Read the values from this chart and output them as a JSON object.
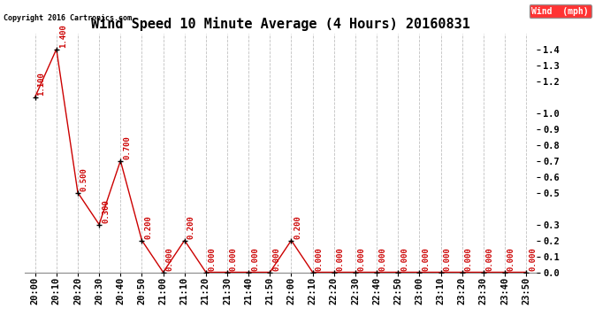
{
  "title": "Wind Speed 10 Minute Average (4 Hours) 20160831",
  "copyright_text": "Copyright 2016 Cartronics.com",
  "legend_label": "Wind  (mph)",
  "legend_bg": "#ff0000",
  "legend_text_color": "#ffffff",
  "x_labels": [
    "20:00",
    "20:10",
    "20:20",
    "20:30",
    "20:40",
    "20:50",
    "21:00",
    "21:10",
    "21:20",
    "21:30",
    "21:40",
    "21:50",
    "22:00",
    "22:10",
    "22:20",
    "22:30",
    "22:40",
    "22:50",
    "23:00",
    "23:10",
    "23:20",
    "23:30",
    "23:40",
    "23:50"
  ],
  "y_values": [
    1.1,
    1.4,
    0.5,
    0.3,
    0.7,
    0.2,
    0.0,
    0.2,
    0.0,
    0.0,
    0.0,
    0.0,
    0.2,
    0.0,
    0.0,
    0.0,
    0.0,
    0.0,
    0.0,
    0.0,
    0.0,
    0.0,
    0.0,
    0.0
  ],
  "line_color": "#cc0000",
  "marker_color": "#000000",
  "annotation_color": "#cc0000",
  "bg_color": "#ffffff",
  "grid_color": "#c0c0c0",
  "right_yticks": [
    0.0,
    0.1,
    0.2,
    0.3,
    0.5,
    0.6,
    0.7,
    0.8,
    0.9,
    1.0,
    1.2,
    1.3,
    1.4
  ],
  "ylim": [
    0.0,
    1.5
  ],
  "title_fontsize": 11,
  "annotation_fontsize": 6.5,
  "tick_fontsize": 7.5
}
